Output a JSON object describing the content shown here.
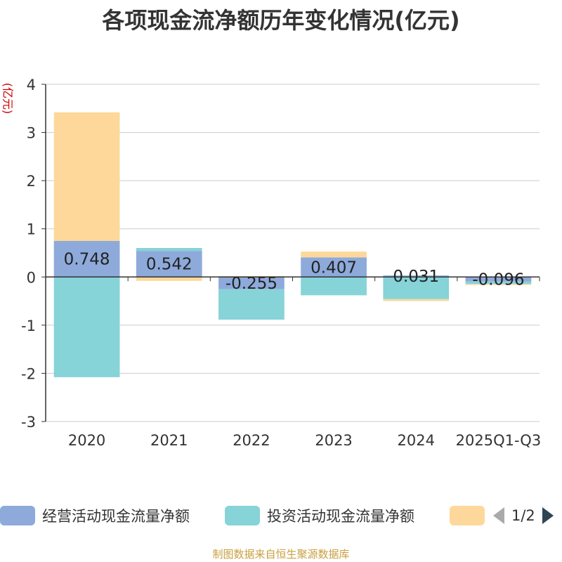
{
  "title": "各项现金流净额历年变化情况(亿元)",
  "y_unit": "(亿元)",
  "footer": "制图数据来自恒生聚源数据库",
  "legend": {
    "items": [
      {
        "label": "经营活动现金流量净额",
        "color": "#8eaadb"
      },
      {
        "label": "投资活动现金流量净额",
        "color": "#86d3d8"
      },
      {
        "label": "",
        "color": "#fdd89a"
      }
    ],
    "page": "1/2"
  },
  "chart_data": {
    "type": "bar",
    "stacked": true,
    "categories": [
      "2020",
      "2021",
      "2022",
      "2023",
      "2024",
      "2025Q1-Q3"
    ],
    "ylim": [
      -3,
      4
    ],
    "yticks": [
      4,
      3,
      2,
      1,
      0,
      -1,
      -2,
      -3
    ],
    "grid": true,
    "series": [
      {
        "name": "经营活动现金流量净额",
        "color": "#8eaadb",
        "values": [
          0.748,
          0.542,
          -0.255,
          0.407,
          0.031,
          -0.096
        ]
      },
      {
        "name": "投资活动现金流量净额",
        "color": "#86d3d8",
        "values": [
          -2.08,
          0.06,
          -0.63,
          -0.38,
          -0.46,
          -0.05
        ]
      },
      {
        "name": "",
        "color": "#fdd89a",
        "values": [
          2.67,
          -0.08,
          0.02,
          0.12,
          -0.04,
          -0.02
        ]
      }
    ],
    "data_labels": [
      "0.748",
      "0.542",
      "-0.255",
      "0.407",
      "0.031",
      "-0.096"
    ]
  }
}
